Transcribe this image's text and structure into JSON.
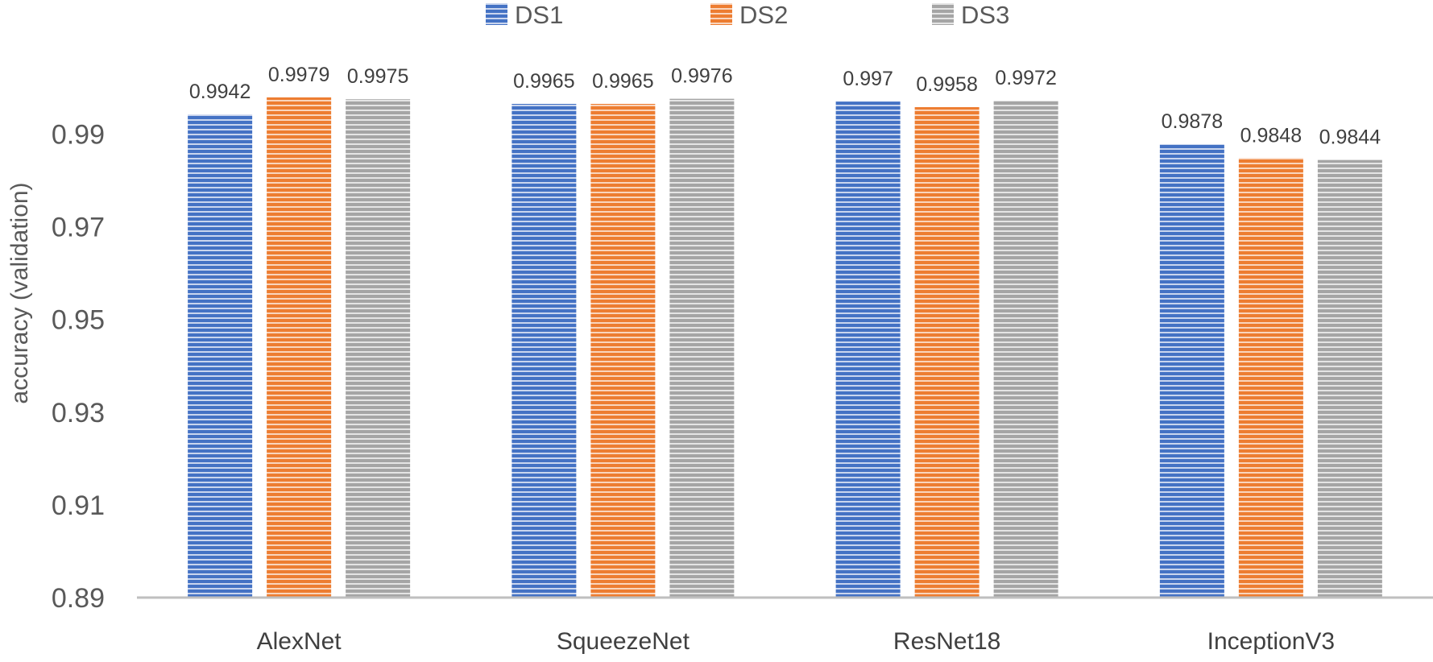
{
  "chart_data": {
    "type": "bar",
    "title": "",
    "xlabel": "",
    "ylabel": "accuracy (validation)",
    "ylim": [
      0.89,
      0.9998
    ],
    "yticks": [
      "0.89",
      "0.91",
      "0.93",
      "0.95",
      "0.97",
      "0.99"
    ],
    "grid": false,
    "legend_position": "top-center",
    "categories": [
      "AlexNet",
      "SqueezeNet",
      "ResNet18",
      "InceptionV3"
    ],
    "series": [
      {
        "name": "DS1",
        "color": "#4472C4",
        "values": [
          0.9942,
          0.9965,
          0.997,
          0.9878
        ],
        "labels": [
          "0.9942",
          "0.9965",
          "0.997",
          "0.9878"
        ]
      },
      {
        "name": "DS2",
        "color": "#ED7D31",
        "values": [
          0.9979,
          0.9965,
          0.9958,
          0.9848
        ],
        "labels": [
          "0.9979",
          "0.9965",
          "0.9958",
          "0.9848"
        ]
      },
      {
        "name": "DS3",
        "color": "#A5A5A5",
        "values": [
          0.9975,
          0.9976,
          0.9972,
          0.9844
        ],
        "labels": [
          "0.9975",
          "0.9976",
          "0.9972",
          "0.9844"
        ]
      }
    ]
  }
}
